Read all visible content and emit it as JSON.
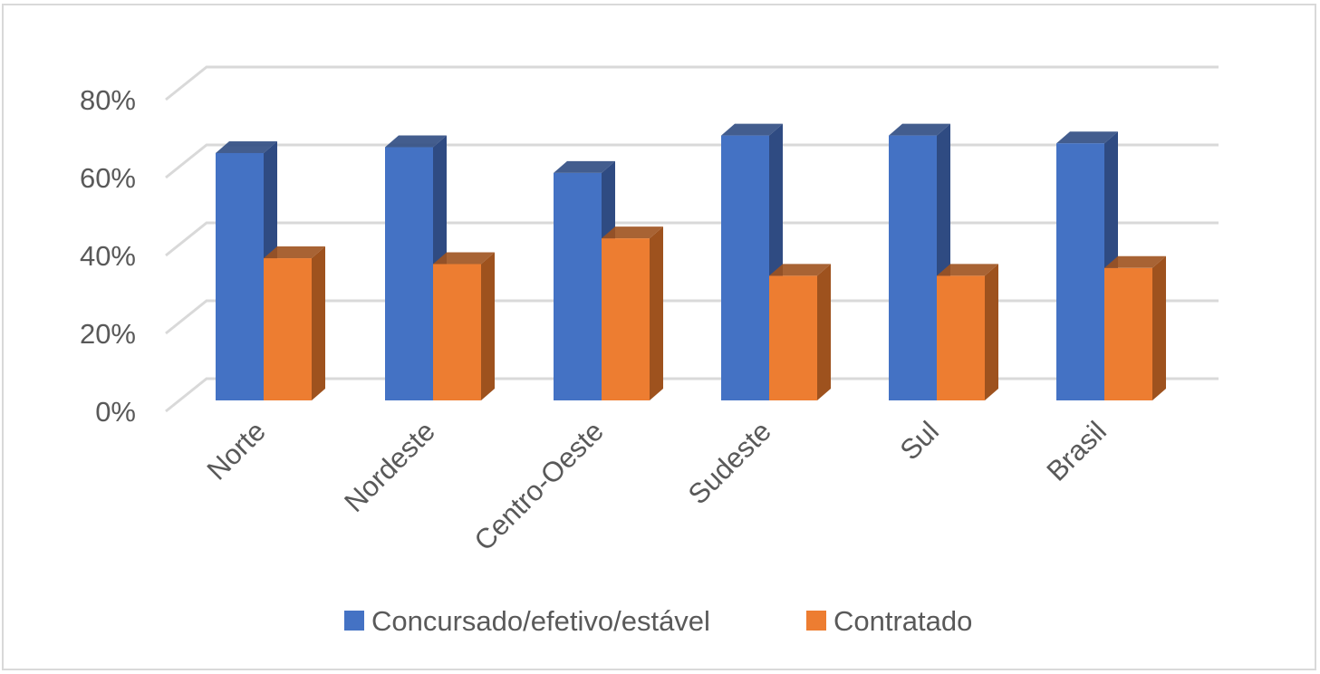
{
  "chart_data": {
    "type": "bar",
    "style": "3d-clustered-column",
    "categories": [
      "Norte",
      "Nordeste",
      "Centro-Oeste",
      "Sudeste",
      "Sul",
      "Brasil"
    ],
    "series": [
      {
        "name": "Concursado/efetivo/estável",
        "values": [
          63.5,
          65,
          58.4,
          68,
          68,
          66
        ],
        "color": "#4472C4",
        "side_color": "#2F4B82"
      },
      {
        "name": "Contratado",
        "values": [
          36.5,
          35,
          41.6,
          32,
          32,
          34
        ],
        "color": "#ED7D31",
        "side_color": "#9E521E"
      }
    ],
    "yticks": [
      "0%",
      "20%",
      "40%",
      "60%",
      "80%"
    ],
    "ytick_values": [
      0,
      20,
      40,
      60,
      80
    ],
    "ylim": [
      0,
      80
    ],
    "grid": true,
    "legend": "bottom",
    "gridline_color": "#d9d9d9"
  }
}
